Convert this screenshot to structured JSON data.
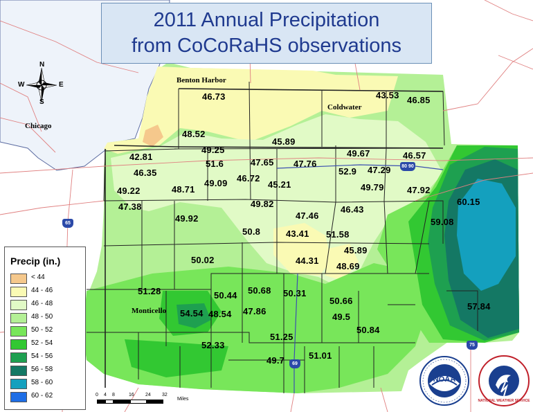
{
  "title": {
    "line1": "2011 Annual Precipitation",
    "line2": "from CoCoRaHS observations"
  },
  "compass": {
    "n": "N",
    "s": "S",
    "e": "E",
    "w": "W"
  },
  "cities": {
    "benton_harbor": "Benton Harbor",
    "coldwater": "Coldwater",
    "chicago": "Chicago",
    "monticello": "Monticello"
  },
  "highways": [
    "65",
    "80 90",
    "75",
    "69"
  ],
  "observations": [
    "46.73",
    "43.53",
    "46.85",
    "48.52",
    "45.89",
    "42.81",
    "49.25",
    "49.67",
    "46.57",
    "51.6",
    "47.65",
    "47.76",
    "46.35",
    "52.9",
    "47.29",
    "49.09",
    "46.72",
    "49.22",
    "48.71",
    "45.21",
    "49.79",
    "47.92",
    "47.38",
    "49.82",
    "46.43",
    "60.15",
    "49.92",
    "47.46",
    "59.08",
    "50.8",
    "43.41",
    "51.58",
    "45.89",
    "50.02",
    "44.31",
    "48.69",
    "51.28",
    "50.44",
    "50.68",
    "50.31",
    "50.66",
    "54.54",
    "48.54",
    "47.86",
    "57.84",
    "49.5",
    "50.84",
    "52.33",
    "51.25",
    "51.01",
    "49.7"
  ],
  "legend": {
    "title": "Precip (in.)",
    "items": [
      {
        "label": "< 44",
        "color": "#f5c88c"
      },
      {
        "label": "44 - 46",
        "color": "#fafab4"
      },
      {
        "label": "46 - 48",
        "color": "#e1fac6"
      },
      {
        "label": "48 - 50",
        "color": "#b4f096"
      },
      {
        "label": "50 - 52",
        "color": "#78e65a"
      },
      {
        "label": "52 - 54",
        "color": "#32c832"
      },
      {
        "label": "54 - 56",
        "color": "#1ea050"
      },
      {
        "label": "56 - 58",
        "color": "#147864"
      },
      {
        "label": "58 - 60",
        "color": "#14a0be"
      },
      {
        "label": "60 - 62",
        "color": "#1e6ee6"
      }
    ]
  },
  "scale": {
    "ticks": [
      "0",
      "4",
      "8",
      "16",
      "24",
      "32"
    ],
    "unit": "Miles"
  },
  "logos": {
    "noaa": "NOAA",
    "noaa_ring": "NATIONAL OCEANIC AND ATMOSPHERIC ADMINISTRATION · U.S. DEPARTMENT OF COMMERCE",
    "nws": "NATIONAL WEATHER SERVICE"
  }
}
